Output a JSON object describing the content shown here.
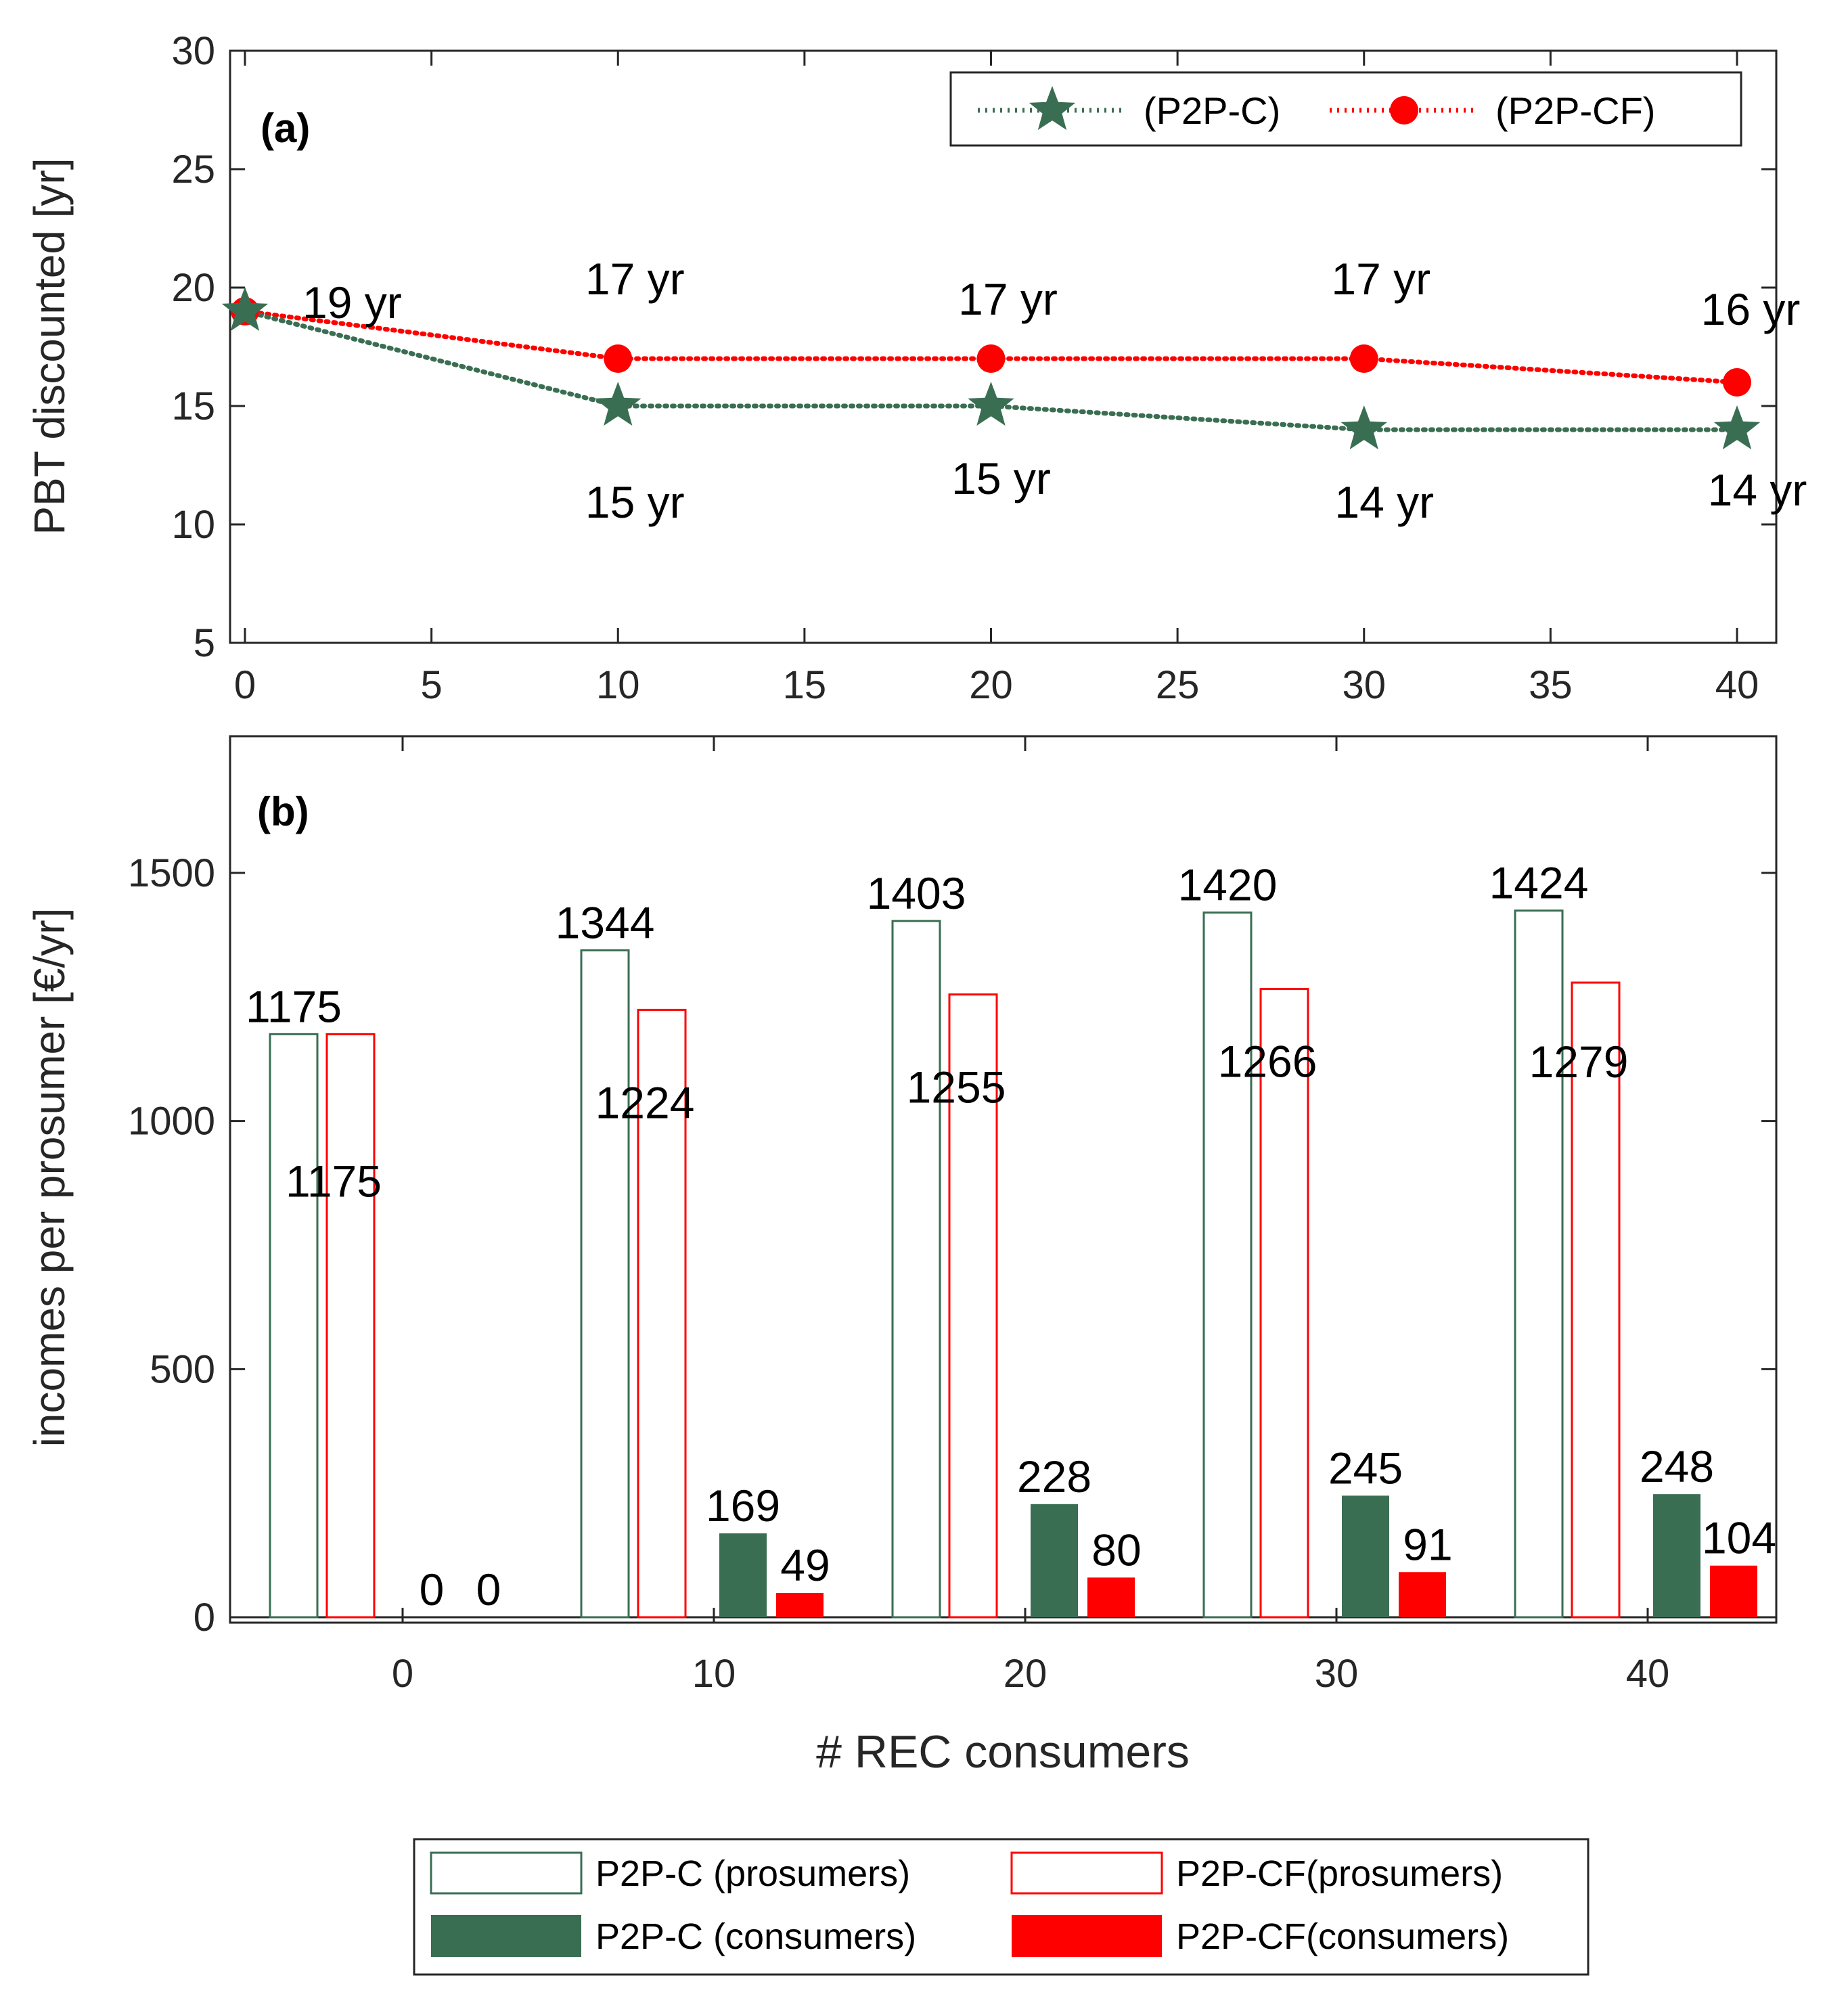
{
  "colors": {
    "green": "#3a6e53",
    "red": "#ff0000",
    "axis": "#262626"
  },
  "chart_data": [
    {
      "type": "line",
      "panel_label": "(a)",
      "xlabel": "",
      "ylabel": "PBT discounted [yr]",
      "xlim": [
        0,
        40
      ],
      "ylim": [
        5,
        30
      ],
      "xticks": [
        "0",
        "5",
        "10",
        "15",
        "20",
        "25",
        "30",
        "35",
        "40"
      ],
      "yticks": [
        "5",
        "10",
        "15",
        "20",
        "25",
        "30"
      ],
      "x": [
        0,
        10,
        20,
        30,
        40
      ],
      "series": [
        {
          "name": "(P2P-C)",
          "marker": "star",
          "color": "#3a6e53",
          "values": [
            19,
            15,
            15,
            14,
            14
          ],
          "labels": [
            "",
            "15 yr",
            "15 yr",
            "14 yr",
            "14 yr"
          ]
        },
        {
          "name": "(P2P-CF)",
          "marker": "circle",
          "color": "#ff0000",
          "values": [
            19,
            17,
            17,
            17,
            16
          ],
          "labels": [
            "19 yr",
            "17 yr",
            "17 yr",
            "17 yr",
            "16 yr"
          ]
        }
      ],
      "legend": "top-right"
    },
    {
      "type": "bar",
      "panel_label": "(b)",
      "xlabel": "# REC consumers",
      "ylabel": "incomes per prosumer [€/yr]",
      "ylim": [
        0,
        1750
      ],
      "yticks": [
        "0",
        "500",
        "1000",
        "1500"
      ],
      "categories": [
        "0",
        "10",
        "20",
        "30",
        "40"
      ],
      "series": [
        {
          "name": "P2P-C (prosumers)",
          "style": "outline",
          "color": "#3a6e53",
          "values": [
            1175,
            1344,
            1403,
            1420,
            1424
          ]
        },
        {
          "name": "P2P-CF(prosumers)",
          "style": "outline",
          "color": "#ff0000",
          "values": [
            1175,
            1224,
            1255,
            1266,
            1279
          ]
        },
        {
          "name": "P2P-C (consumers)",
          "style": "filled",
          "color": "#3a6e53",
          "values": [
            0,
            169,
            228,
            245,
            248
          ]
        },
        {
          "name": "P2P-CF(consumers)",
          "style": "filled",
          "color": "#ff0000",
          "values": [
            0,
            49,
            80,
            91,
            104
          ]
        }
      ],
      "legend": "bottom-center"
    }
  ]
}
